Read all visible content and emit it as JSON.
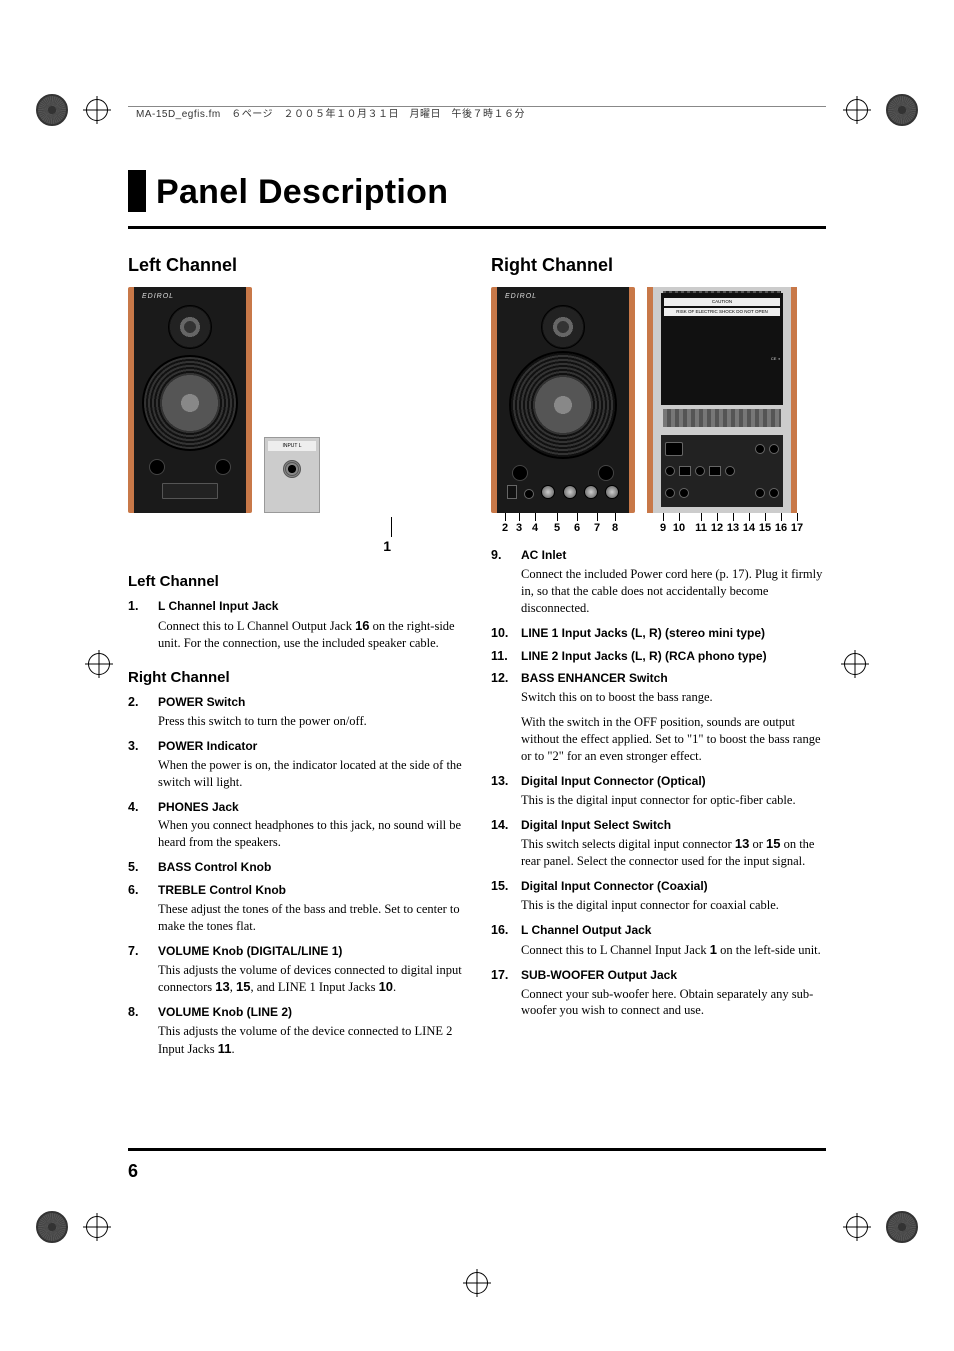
{
  "header": "MA-15D_egfis.fm　６ページ　２００５年１０月３１日　月曜日　午後７時１６分",
  "title": "Panel Description",
  "pageNumber": "6",
  "brand": "EDIROL",
  "left": {
    "heading": "Left Channel",
    "calloutSingle": "1",
    "backMiniLabel": "INPUT   L",
    "subheading": "Left Channel",
    "items": [
      {
        "num": "1.",
        "label": "L Channel Input Jack",
        "desc_a": "Connect this to L Channel Output Jack ",
        "ref": "16",
        "desc_b": " on the right-side unit. For the connection, use the included speaker cable."
      }
    ],
    "rightSubheading": "Right Channel",
    "rightItems": [
      {
        "num": "2.",
        "label": "POWER Switch",
        "desc": "Press this switch to turn the power on/off."
      },
      {
        "num": "3.",
        "label": "POWER Indicator",
        "desc": "When the power is on, the indicator located at the side of the switch will light."
      },
      {
        "num": "4.",
        "label": "PHONES Jack",
        "desc": "When you connect headphones to this jack, no sound will be heard from the speakers."
      },
      {
        "num": "5.",
        "label": "BASS Control Knob"
      },
      {
        "num": "6.",
        "label": "TREBLE Control Knob",
        "desc": "These adjust the tones of the bass and treble. Set to center to make the tones flat."
      },
      {
        "num": "7.",
        "label": "VOLUME Knob (DIGITAL/LINE 1)",
        "desc_a": "This adjusts the volume of devices connected to digital input connectors ",
        "ref1": "13",
        "mid1": ", ",
        "ref2": "15",
        "mid2": ", and LINE 1 Input Jacks ",
        "ref3": "10",
        "tail": "."
      },
      {
        "num": "8.",
        "label": "VOLUME Knob (LINE 2)",
        "desc_a": "This adjusts the volume of the device connected to LINE 2 Input Jacks ",
        "ref": "11",
        "tail": "."
      }
    ]
  },
  "right": {
    "heading": "Right Channel",
    "callouts_left": [
      "2",
      "3",
      "4",
      "5",
      "6",
      "7",
      "8"
    ],
    "callouts_right": [
      "9",
      "10",
      "11",
      "12",
      "13",
      "14",
      "15",
      "16",
      "17"
    ],
    "items": [
      {
        "num": "9.",
        "label": "AC Inlet",
        "desc": "Connect the included Power cord here (p. 17). Plug it firmly in, so that the cable does not accidentally become disconnected."
      },
      {
        "num": "10.",
        "label": "LINE 1 Input Jacks (L, R) (stereo mini type)"
      },
      {
        "num": "11.",
        "label": "LINE 2 Input Jacks (L, R) (RCA phono type)"
      },
      {
        "num": "12.",
        "label": "BASS ENHANCER Switch",
        "desc": "Switch this on to boost the bass range.",
        "desc2": "With the switch in the OFF position, sounds are output without the effect applied. Set to \"1\" to boost the bass range or to \"2\" for an even stronger effect."
      },
      {
        "num": "13.",
        "label": "Digital Input Connector (Optical)",
        "desc": "This is the digital input connector for optic-fiber cable."
      },
      {
        "num": "14.",
        "label": "Digital Input Select Switch",
        "desc_a": "This switch selects digital input connector ",
        "ref1": "13",
        "mid1": " or ",
        "ref2": "15",
        "tail": " on the rear panel. Select the connector used for the input signal."
      },
      {
        "num": "15.",
        "label": "Digital Input Connector (Coaxial)",
        "desc": "This is the digital input connector for coaxial cable."
      },
      {
        "num": "16.",
        "label": "L Channel Output Jack",
        "desc_a": "Connect this to L Channel Input Jack ",
        "ref": "1",
        "tail": " on the left-side unit."
      },
      {
        "num": "17.",
        "label": "SUB-WOOFER Output Jack",
        "desc": "Connect your sub-woofer here. Obtain separately any sub-woofer you wish to connect and use."
      }
    ]
  }
}
